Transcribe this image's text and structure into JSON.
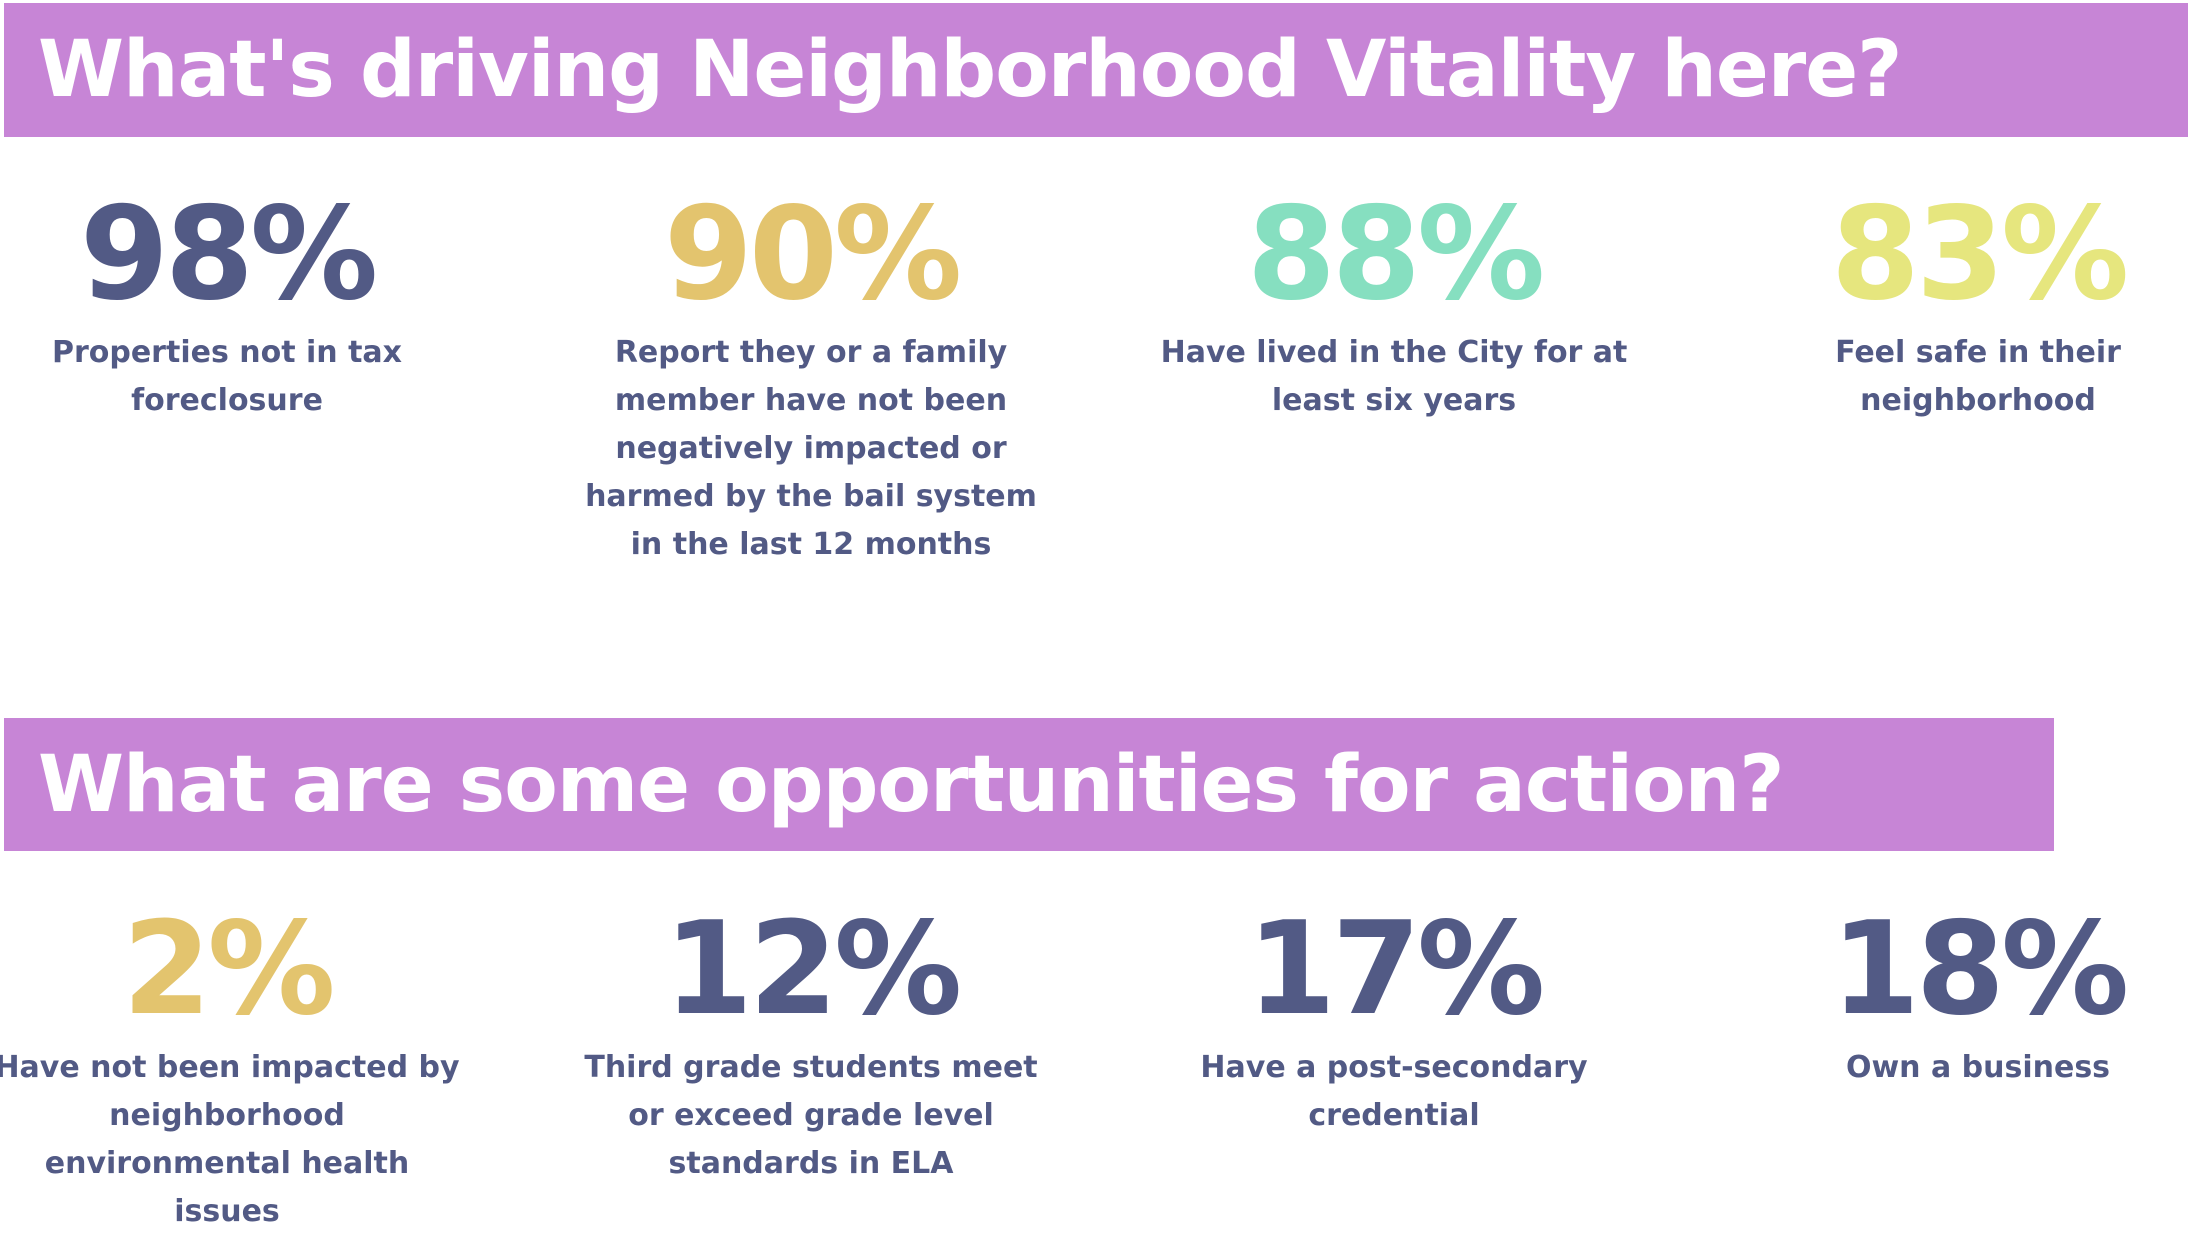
{
  "sections": [
    {
      "title": "What's driving Neighborhood Vitality here?",
      "stats": [
        {
          "value": "98%",
          "text": "Properties not in tax foreclosure",
          "color": "#525a85"
        },
        {
          "value": "90%",
          "text": "Report they or a family member have not been negatively impacted or harmed by the bail system in the last 12 months",
          "color": "#e3c46e"
        },
        {
          "value": "88%",
          "text": "Have lived in the City for at least six years",
          "color": "#86dfc0"
        },
        {
          "value": "83%",
          "text": "Feel safe in their neighborhood",
          "color": "#e6e67e"
        }
      ]
    },
    {
      "title": "What are some opportunities for action?",
      "stats": [
        {
          "value": "2%",
          "text": "Have not been impacted by neighborhood environmental health issues",
          "color": "#e3c46e"
        },
        {
          "value": "12%",
          "text": "Third grade students meet or exceed grade level standards in ELA",
          "color": "#525a85"
        },
        {
          "value": "17%",
          "text": "Have a post-secondary credential",
          "color": "#525a85"
        },
        {
          "value": "18%",
          "text": "Own a business",
          "color": "#525a85"
        }
      ]
    }
  ]
}
